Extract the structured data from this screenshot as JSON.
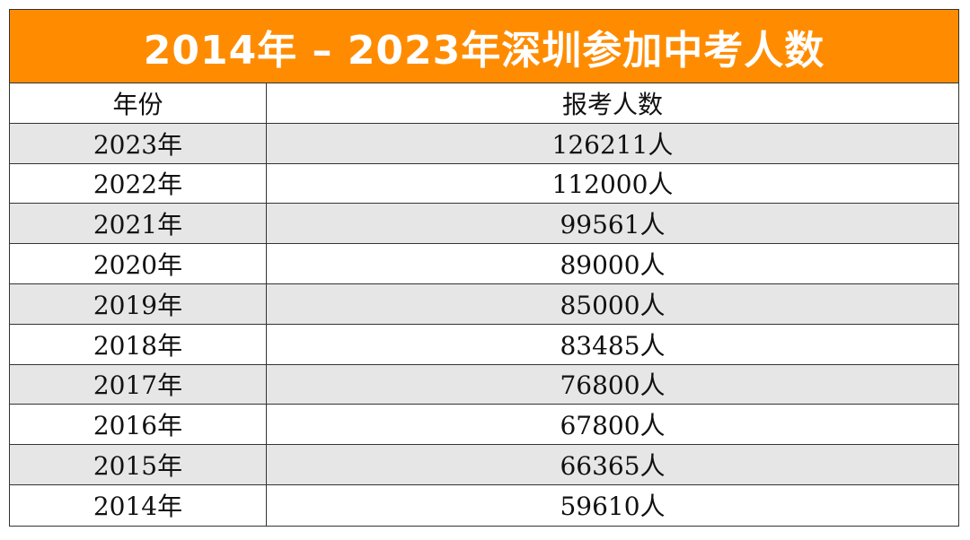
{
  "chart_data": {
    "type": "table",
    "title": "2014年 – 2023年深圳参加中考人数",
    "columns": [
      "年份",
      "报考人数"
    ],
    "rows": [
      {
        "year": "2023年",
        "count": "126211人"
      },
      {
        "year": "2022年",
        "count": "112000人"
      },
      {
        "year": "2021年",
        "count": "99561人"
      },
      {
        "year": "2020年",
        "count": "89000人"
      },
      {
        "year": "2019年",
        "count": "85000人"
      },
      {
        "year": "2018年",
        "count": "83485人"
      },
      {
        "year": "2017年",
        "count": "76800人"
      },
      {
        "year": "2016年",
        "count": "67800人"
      },
      {
        "year": "2015年",
        "count": "66365人"
      },
      {
        "year": "2014年",
        "count": "59610人"
      }
    ]
  },
  "colors": {
    "header_background": "#ff8c00",
    "header_text": "#ffffff",
    "shaded_row": "#e6e6e6"
  }
}
